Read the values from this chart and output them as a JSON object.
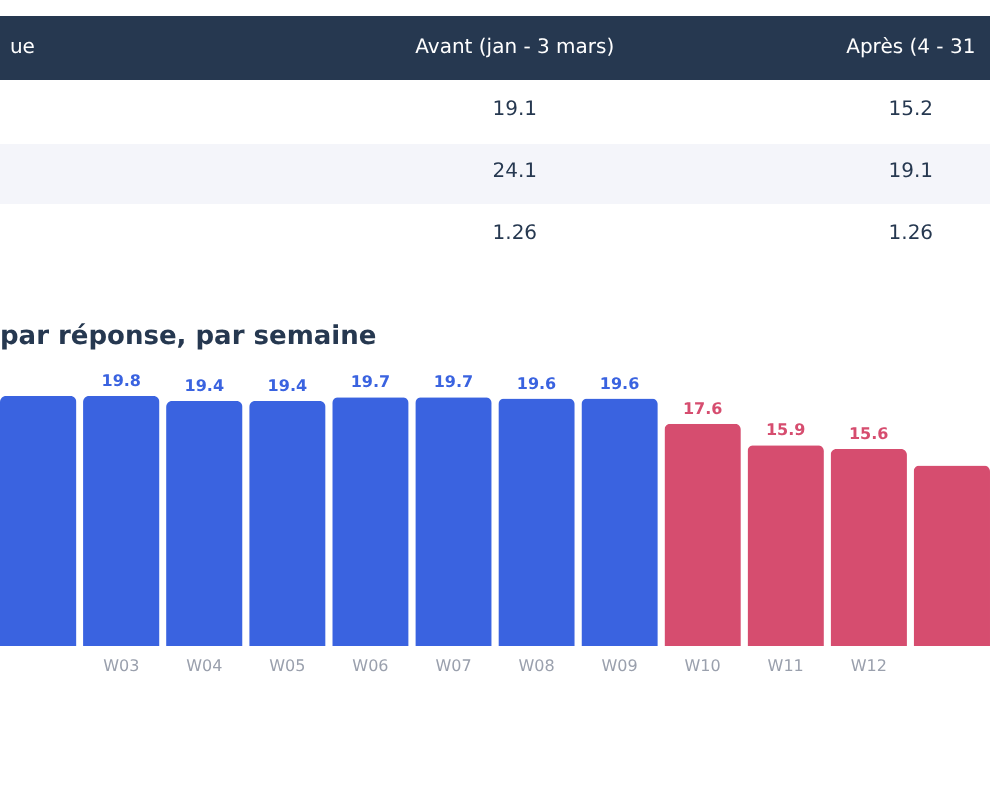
{
  "chart_data": [
    {
      "type": "other",
      "annotations": [
        "ue",
        "Avant (jan - 3 mars)",
        "Après (4 - 31",
        "19.1",
        "15.2",
        "24.1",
        "19.1",
        "1.26",
        "1.26"
      ]
    },
    {
      "type": "bar",
      "title": "par réponse, par semaine",
      "categories": [
        null,
        "W03",
        "W04",
        "W05",
        "W06",
        "W07",
        "W08",
        "W09",
        "W10",
        "W11",
        "W12",
        null
      ],
      "values": [
        19.8,
        19.8,
        19.4,
        19.4,
        19.7,
        19.7,
        19.6,
        19.6,
        17.6,
        15.9,
        15.6,
        14.3
      ],
      "colors": [
        "#3a63e0",
        "#3a63e0",
        "#3a63e0",
        "#3a63e0",
        "#3a63e0",
        "#3a63e0",
        "#3a63e0",
        "#3a63e0",
        "#d64d6f",
        "#d64d6f",
        "#d64d6f",
        "#d64d6f"
      ],
      "value_labels": [
        null,
        "19.8",
        "19.4",
        "19.4",
        "19.7",
        "19.7",
        "19.6",
        "19.6",
        "17.6",
        "15.9",
        "15.6",
        null
      ]
    }
  ]
}
